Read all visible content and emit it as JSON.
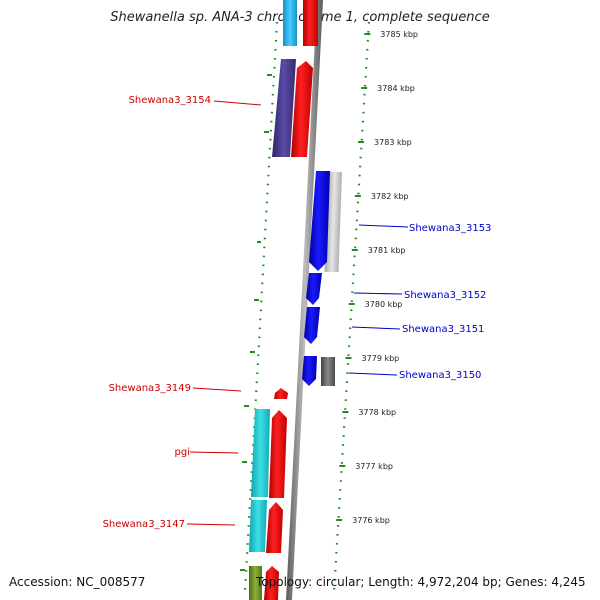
{
  "title": "Shewanella sp. ANA-3 chromosome 1, complete sequence",
  "footer": {
    "accession_label": "Accession:",
    "accession": "NC_008577",
    "topology_label": "Topology:",
    "topology": "circular",
    "length_label": "Length:",
    "length": "4,972,204 bp",
    "genes_label": "Genes:",
    "genes": "4,245"
  },
  "ticks": [
    {
      "label": "3785 kbp"
    },
    {
      "label": "3784 kbp"
    },
    {
      "label": "3783 kbp"
    },
    {
      "label": "3782 kbp"
    },
    {
      "label": "3781 kbp"
    },
    {
      "label": "3780 kbp"
    },
    {
      "label": "3779 kbp"
    },
    {
      "label": "3778 kbp"
    },
    {
      "label": "3777 kbp"
    },
    {
      "label": "3776 kbp"
    }
  ],
  "gene_labels": [
    {
      "text": "Shewana3_3154",
      "strand": "forward",
      "color": "#cc0000"
    },
    {
      "text": "Shewana3_3153",
      "strand": "reverse",
      "color": "#0000cc"
    },
    {
      "text": "Shewana3_3152",
      "strand": "reverse",
      "color": "#0000cc"
    },
    {
      "text": "Shewana3_3151",
      "strand": "reverse",
      "color": "#0000cc"
    },
    {
      "text": "Shewana3_3150",
      "strand": "reverse",
      "color": "#0000cc"
    },
    {
      "text": "Shewana3_3149",
      "strand": "forward",
      "color": "#cc0000"
    },
    {
      "text": "pgi",
      "strand": "forward",
      "color": "#cc0000"
    },
    {
      "text": "Shewana3_3147",
      "strand": "forward",
      "color": "#cc0000"
    }
  ],
  "colors": {
    "forward_cds": "#ff0000",
    "reverse_cds": "#0000ff",
    "forward_label": "#cc0000",
    "reverse_label": "#0000cc",
    "backbone": "#888888",
    "gc_dots": "#228b22",
    "cog_purple": "#4b3d8f",
    "cog_cyan": "#1ec8d2",
    "cog_skyblue": "#26b7f0",
    "cog_lightgrey": "#c8c8c8",
    "cog_darkgrey": "#666666",
    "cog_olive": "#6b8e23"
  }
}
